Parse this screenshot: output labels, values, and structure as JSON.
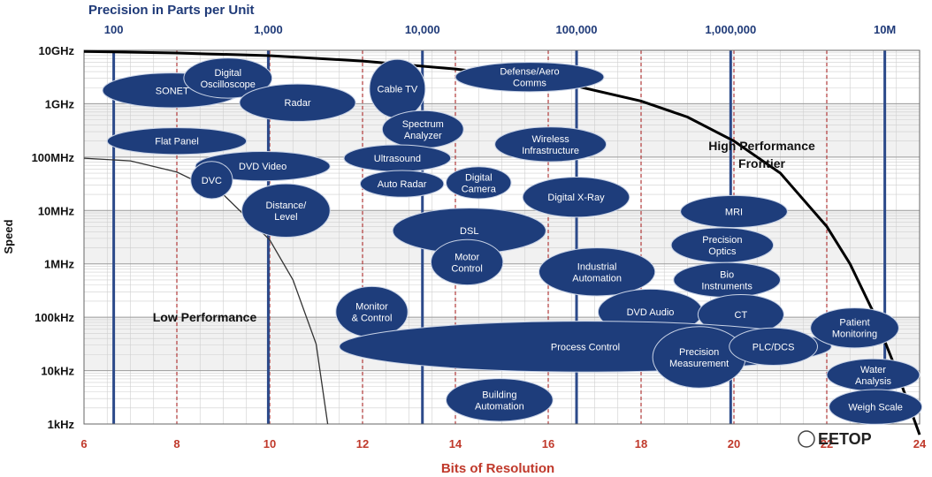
{
  "chart_data": {
    "type": "scatter",
    "title": "",
    "top_axis": {
      "title": "Precision in Parts per Unit",
      "ticks": [
        {
          "label": "100",
          "bits": 6.64
        },
        {
          "label": "1,000",
          "bits": 9.97
        },
        {
          "label": "10,000",
          "bits": 13.29
        },
        {
          "label": "100,000",
          "bits": 16.61
        },
        {
          "label": "1,000,000",
          "bits": 19.93
        },
        {
          "label": "10M",
          "bits": 23.25
        }
      ]
    },
    "xlabel": "Bits of Resolution",
    "ylabel": "Speed",
    "xlim": [
      6,
      24
    ],
    "ylim_log10_hz": [
      3,
      10
    ],
    "x_ticks": [
      "6",
      "8",
      "10",
      "12",
      "14",
      "16",
      "18",
      "20",
      "22",
      "24"
    ],
    "y_ticks": [
      {
        "label": "10GHz",
        "log10": 10
      },
      {
        "label": "1GHz",
        "log10": 9
      },
      {
        "label": "100MHz",
        "log10": 8
      },
      {
        "label": "10MHz",
        "log10": 7
      },
      {
        "label": "1MHz",
        "log10": 6
      },
      {
        "label": "100kHz",
        "log10": 5
      },
      {
        "label": "10kHz",
        "log10": 4
      },
      {
        "label": "1kHz",
        "log10": 3
      }
    ],
    "grid": true,
    "applications": [
      {
        "label": [
          "SONET"
        ],
        "bits": 7.9,
        "speed_log10": 9.25,
        "bits_span": 3.0,
        "decades_span": 0.65
      },
      {
        "label": [
          "Digital",
          "Oscilloscope"
        ],
        "bits": 9.1,
        "speed_log10": 9.48,
        "bits_span": 1.9,
        "decades_span": 0.75
      },
      {
        "label": [
          "Radar"
        ],
        "bits": 10.6,
        "speed_log10": 9.02,
        "bits_span": 2.5,
        "decades_span": 0.7
      },
      {
        "label": [
          "Cable TV"
        ],
        "bits": 12.75,
        "speed_log10": 9.28,
        "bits_span": 1.2,
        "decades_span": 1.1
      },
      {
        "label": [
          "Defense/Aero",
          "Comms"
        ],
        "bits": 15.6,
        "speed_log10": 9.5,
        "bits_span": 3.2,
        "decades_span": 0.55
      },
      {
        "label": [
          "Spectrum",
          "Analyzer"
        ],
        "bits": 13.3,
        "speed_log10": 8.52,
        "bits_span": 1.75,
        "decades_span": 0.7
      },
      {
        "label": [
          "Wireless",
          "Infrastructure"
        ],
        "bits": 16.05,
        "speed_log10": 8.24,
        "bits_span": 2.4,
        "decades_span": 0.65
      },
      {
        "label": [
          "Flat Panel"
        ],
        "bits": 8.0,
        "speed_log10": 8.3,
        "bits_span": 3.0,
        "decades_span": 0.5
      },
      {
        "label": [
          "DVD Video"
        ],
        "bits": 9.85,
        "speed_log10": 7.83,
        "bits_span": 2.9,
        "decades_span": 0.55
      },
      {
        "label": [
          "DVC"
        ],
        "bits": 8.75,
        "speed_log10": 7.57,
        "bits_span": 0.9,
        "decades_span": 0.7
      },
      {
        "label": [
          "Distance/",
          "Level"
        ],
        "bits": 10.35,
        "speed_log10": 7.0,
        "bits_span": 1.9,
        "decades_span": 1.0
      },
      {
        "label": [
          "Ultrasound"
        ],
        "bits": 12.75,
        "speed_log10": 7.98,
        "bits_span": 2.3,
        "decades_span": 0.5
      },
      {
        "label": [
          "Auto Radar"
        ],
        "bits": 12.85,
        "speed_log10": 7.5,
        "bits_span": 1.8,
        "decades_span": 0.5
      },
      {
        "label": [
          "Digital",
          "Camera"
        ],
        "bits": 14.5,
        "speed_log10": 7.52,
        "bits_span": 1.4,
        "decades_span": 0.6
      },
      {
        "label": [
          "Digital X-Ray"
        ],
        "bits": 16.6,
        "speed_log10": 7.25,
        "bits_span": 2.3,
        "decades_span": 0.75
      },
      {
        "label": [
          "DSL"
        ],
        "bits": 14.3,
        "speed_log10": 6.62,
        "bits_span": 3.3,
        "decades_span": 0.85
      },
      {
        "label": [
          "Motor",
          "Control"
        ],
        "bits": 14.25,
        "speed_log10": 6.03,
        "bits_span": 1.55,
        "decades_span": 0.85
      },
      {
        "label": [
          "MRI"
        ],
        "bits": 20.0,
        "speed_log10": 6.98,
        "bits_span": 2.3,
        "decades_span": 0.6
      },
      {
        "label": [
          "Precision",
          "Optics"
        ],
        "bits": 19.75,
        "speed_log10": 6.35,
        "bits_span": 2.2,
        "decades_span": 0.65
      },
      {
        "label": [
          "Industrial",
          "Automation"
        ],
        "bits": 17.05,
        "speed_log10": 5.85,
        "bits_span": 2.5,
        "decades_span": 0.9
      },
      {
        "label": [
          "Bio",
          "Instruments"
        ],
        "bits": 19.85,
        "speed_log10": 5.7,
        "bits_span": 2.3,
        "decades_span": 0.65
      },
      {
        "label": [
          "Monitor",
          "& Control"
        ],
        "bits": 12.2,
        "speed_log10": 5.1,
        "bits_span": 1.55,
        "decades_span": 0.95
      },
      {
        "label": [
          "DVD Audio"
        ],
        "bits": 18.2,
        "speed_log10": 5.1,
        "bits_span": 2.25,
        "decades_span": 0.85
      },
      {
        "label": [
          "CT"
        ],
        "bits": 20.15,
        "speed_log10": 5.05,
        "bits_span": 1.85,
        "decades_span": 0.75
      },
      {
        "label": [
          "Process Control"
        ],
        "bits": 16.8,
        "speed_log10": 4.45,
        "bits_span": 10.6,
        "decades_span": 0.95
      },
      {
        "label": [
          "Precision",
          "Measurement"
        ],
        "bits": 19.25,
        "speed_log10": 4.25,
        "bits_span": 2.0,
        "decades_span": 1.15
      },
      {
        "label": [
          "PLC/DCS"
        ],
        "bits": 20.85,
        "speed_log10": 4.45,
        "bits_span": 1.9,
        "decades_span": 0.7
      },
      {
        "label": [
          "Patient",
          "Monitoring"
        ],
        "bits": 22.6,
        "speed_log10": 4.8,
        "bits_span": 1.9,
        "decades_span": 0.75
      },
      {
        "label": [
          "Water",
          "Analysis"
        ],
        "bits": 23.0,
        "speed_log10": 3.92,
        "bits_span": 2.0,
        "decades_span": 0.6
      },
      {
        "label": [
          "Building",
          "Automation"
        ],
        "bits": 14.95,
        "speed_log10": 3.45,
        "bits_span": 2.3,
        "decades_span": 0.8
      },
      {
        "label": [
          "Weigh Scale"
        ],
        "bits": 23.05,
        "speed_log10": 3.32,
        "bits_span": 2.0,
        "decades_span": 0.65
      }
    ],
    "regions": [
      {
        "label": [
          "Low Performance"
        ],
        "bits": 8.6,
        "speed_log10": 5.0
      },
      {
        "label": [
          "High Performance",
          "Frontier"
        ],
        "bits": 20.6,
        "speed_log10": 8.05
      }
    ],
    "high_performance_frontier": {
      "bits": [
        6.0,
        8.0,
        10.0,
        12.0,
        14.0,
        16.0,
        18.0,
        19.0,
        20.0,
        21.0,
        22.0,
        22.5,
        23.0,
        23.5,
        24.0
      ],
      "speed_log10": [
        9.98,
        9.95,
        9.9,
        9.8,
        9.65,
        9.45,
        9.05,
        8.75,
        8.3,
        7.7,
        6.7,
        6.0,
        5.1,
        4.0,
        2.8
      ]
    },
    "low_performance_boundary": {
      "bits": [
        6.0,
        7.0,
        8.0,
        9.0,
        10.0,
        10.5,
        11.0,
        11.25
      ],
      "speed_log10": [
        7.98,
        7.93,
        7.72,
        7.3,
        6.45,
        5.7,
        4.5,
        3.0
      ]
    }
  },
  "colors": {
    "bubble_fill": "#1e3d7b",
    "bubble_stroke": "#c9d3e6",
    "frontier": "#000000",
    "low_boundary": "#333333",
    "grid_solid": "#2c4a8a",
    "grid_dashed": "#b23a3a",
    "grid_minor": "#cfcfcf",
    "band": "#f1f1f1"
  },
  "watermark": "EETOP"
}
